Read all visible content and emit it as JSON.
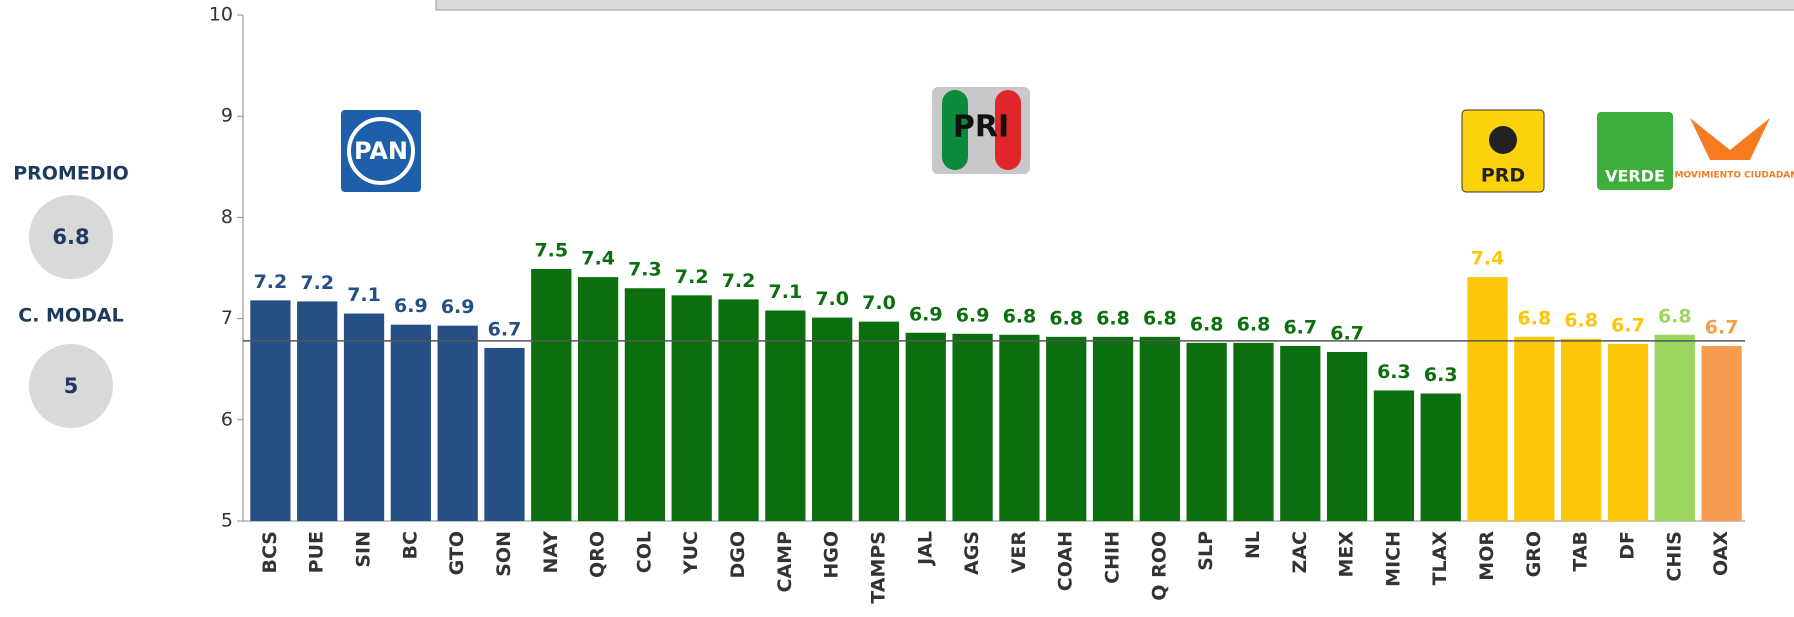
{
  "chart_data": {
    "type": "bar",
    "categories": [
      "BCS",
      "PUE",
      "SIN",
      "BC",
      "GTO",
      "SON",
      "NAY",
      "QRO",
      "COL",
      "YUC",
      "DGO",
      "CAMP",
      "HGO",
      "TAMPS",
      "JAL",
      "AGS",
      "VER",
      "COAH",
      "CHIH",
      "Q ROO",
      "SLP",
      "NL",
      "ZAC",
      "MEX",
      "MICH",
      "TLAX",
      "MOR",
      "GRO",
      "TAB",
      "DF",
      "CHIS",
      "OAX"
    ],
    "values": [
      7.18,
      7.17,
      7.05,
      6.94,
      6.93,
      6.71,
      7.49,
      7.41,
      7.3,
      7.23,
      7.19,
      7.08,
      7.01,
      6.97,
      6.86,
      6.85,
      6.84,
      6.82,
      6.82,
      6.82,
      6.76,
      6.76,
      6.73,
      6.67,
      6.29,
      6.26,
      7.41,
      6.82,
      6.8,
      6.75,
      6.84,
      6.73
    ],
    "value_labels": [
      "7.2",
      "7.2",
      "7.1",
      "6.9",
      "6.9",
      "6.7",
      "7.5",
      "7.4",
      "7.3",
      "7.2",
      "7.2",
      "7.1",
      "7.0",
      "7.0",
      "6.9",
      "6.9",
      "6.8",
      "6.8",
      "6.8",
      "6.8",
      "6.8",
      "6.8",
      "6.7",
      "6.7",
      "6.3",
      "6.3",
      "7.4",
      "6.8",
      "6.8",
      "6.7",
      "6.8",
      "6.7"
    ],
    "colors": [
      "#264f86",
      "#264f86",
      "#264f86",
      "#264f86",
      "#264f86",
      "#264f86",
      "#0b6e0f",
      "#0b6e0f",
      "#0b6e0f",
      "#0b6e0f",
      "#0b6e0f",
      "#0b6e0f",
      "#0b6e0f",
      "#0b6e0f",
      "#0b6e0f",
      "#0b6e0f",
      "#0b6e0f",
      "#0b6e0f",
      "#0b6e0f",
      "#0b6e0f",
      "#0b6e0f",
      "#0b6e0f",
      "#0b6e0f",
      "#0b6e0f",
      "#0b6e0f",
      "#0b6e0f",
      "#fcc707",
      "#fcc707",
      "#fcc707",
      "#fcc707",
      "#9bd65f",
      "#f79c4e"
    ],
    "ylim": [
      5,
      10
    ],
    "yticks": [
      5,
      6,
      7,
      8,
      9,
      10
    ],
    "mean_line": 6.78
  },
  "summary": {
    "mean_label": "PROMEDIO",
    "mean_value": "6.8",
    "mode_label": "C. MODAL",
    "mode_value": "5"
  },
  "logos": {
    "pan": "PAN",
    "pri": "PRI",
    "prd": "PRD",
    "verde": "VERDE",
    "mc": "MOVIMIENTO CIUDADANO"
  }
}
